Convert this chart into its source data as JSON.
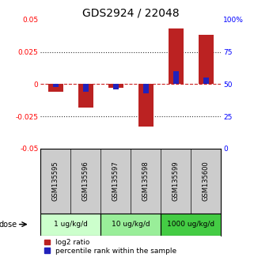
{
  "title": "GDS2924 / 22048",
  "samples": [
    "GSM135595",
    "GSM135596",
    "GSM135597",
    "GSM135598",
    "GSM135599",
    "GSM135600"
  ],
  "log2_ratio": [
    -0.006,
    -0.018,
    -0.003,
    -0.033,
    0.043,
    0.038
  ],
  "percentile_rank": [
    -0.002,
    -0.006,
    -0.004,
    -0.007,
    0.01,
    0.005
  ],
  "ylim": [
    -0.05,
    0.05
  ],
  "yticks_left": [
    -0.05,
    -0.025,
    0,
    0.025,
    0.05
  ],
  "yticks_right": [
    0,
    25,
    50,
    75,
    100
  ],
  "yticks_right_pos": [
    -0.05,
    -0.025,
    0,
    0.025,
    0.05
  ],
  "dose_groups": [
    {
      "label": "1 ug/kg/d",
      "samples": [
        0,
        1
      ],
      "color": "#ccffcc"
    },
    {
      "label": "10 ug/kg/d",
      "samples": [
        2,
        3
      ],
      "color": "#99ee99"
    },
    {
      "label": "1000 ug/kg/d",
      "samples": [
        4,
        5
      ],
      "color": "#44cc44"
    }
  ],
  "bar_width": 0.5,
  "blue_bar_width": 0.18,
  "red_color": "#bb2222",
  "blue_color": "#2222bb",
  "bg_color": "#ffffff",
  "sample_bg_color": "#cccccc",
  "zero_line_color": "#cc2222",
  "dotted_line_color": "#333333",
  "title_fontsize": 10,
  "tick_fontsize": 6.5,
  "label_fontsize": 6.5,
  "legend_fontsize": 6.5,
  "dose_label": "dose"
}
